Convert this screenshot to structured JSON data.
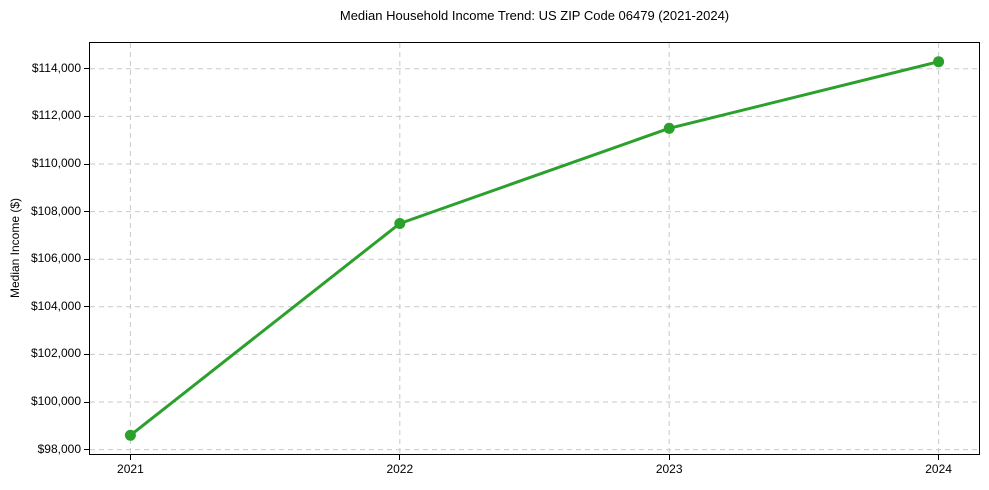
{
  "chart_data": {
    "type": "line",
    "title": "Median Household Income Trend: US ZIP Code 06479 (2021-2024)",
    "xlabel": "",
    "ylabel": "Median Income ($)",
    "x": [
      2021,
      2022,
      2023,
      2024
    ],
    "series": [
      {
        "name": "Median Household Income",
        "values": [
          98600,
          107500,
          111500,
          114300
        ]
      }
    ],
    "xticks": [
      2021,
      2022,
      2023,
      2024
    ],
    "yticks": [
      98000,
      100000,
      102000,
      104000,
      106000,
      108000,
      110000,
      112000,
      114000
    ],
    "ytick_prefix": "$",
    "xlim": [
      2020.85,
      2024.15
    ],
    "ylim": [
      97815,
      115085
    ],
    "grid": true,
    "grid_style": "dashed",
    "grid_color": "#c9c9c9",
    "line_color": "#2ca02c",
    "marker_color": "#2ca02c",
    "spine_color": "#000000",
    "background_color": "#ffffff",
    "legend": null
  }
}
